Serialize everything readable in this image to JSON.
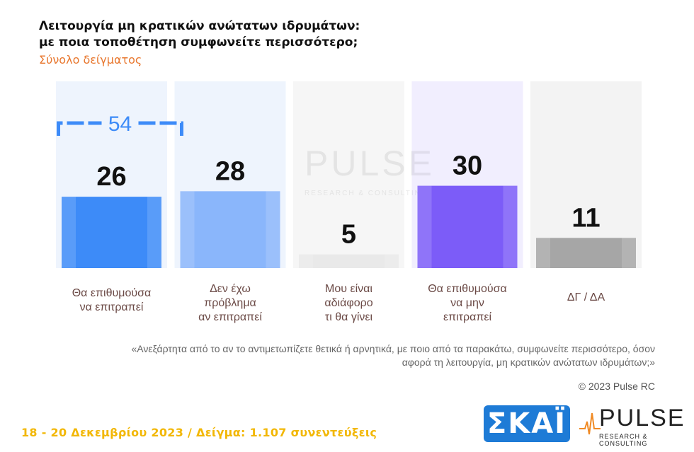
{
  "header": {
    "title": "Λειτουργία μη κρατικών ανώτατων ιδρυμάτων:\nμε ποια τοποθέτηση συμφωνείτε περισσότερο;",
    "subtitle": "Σύνολο δείγματος"
  },
  "chart_data": {
    "type": "bar",
    "categories": [
      "Θα επιθυμούσα\nνα επιτραπεί",
      "Δεν έχω\nπρόβλημα\nαν επιτραπεί",
      "Μου είναι\nαδιάφορο\nτι θα γίνει",
      "Θα επιθυμούσα\nνα μην\nεπιτραπεί",
      "ΔΓ / ΔΑ"
    ],
    "values": [
      26,
      28,
      5,
      30,
      11
    ],
    "colors": [
      "#3d8bf8",
      "#8ab6fb",
      "#e9e9e9",
      "#7c5cf8",
      "#a6a6a6"
    ],
    "bracket": {
      "spans": [
        0,
        1
      ],
      "value": "54",
      "color": "#3d8bf8"
    },
    "grid": false,
    "legend": "none"
  },
  "watermark": {
    "name": "PULSE",
    "sub": "RESEARCH & CONSULTING"
  },
  "note": "«Ανεξάρτητα από το αν το αντιμετωπίζετε θετικά ή αρνητικά, με ποιο από τα παρακάτω, συμφωνείτε περισσότερο, όσον αφορά τη λειτουργία, μη κρατικών ανώτατων ιδρυμάτων;»",
  "copyright": "© 2023 Pulse RC",
  "footer": {
    "date_text": "18 - 20 Δεκεμβρίου 2023 / Δείγμα: 1.107 συνεντεύξεις",
    "skai_logo": "ΣΚΑΪ",
    "pulse_name": "PULSE",
    "pulse_sub": "RESEARCH & CONSULTING"
  },
  "colors": {
    "accent_orange": "#e8772e",
    "footer_yellow": "#f2b705",
    "skai_blue": "#1e7bd6"
  }
}
